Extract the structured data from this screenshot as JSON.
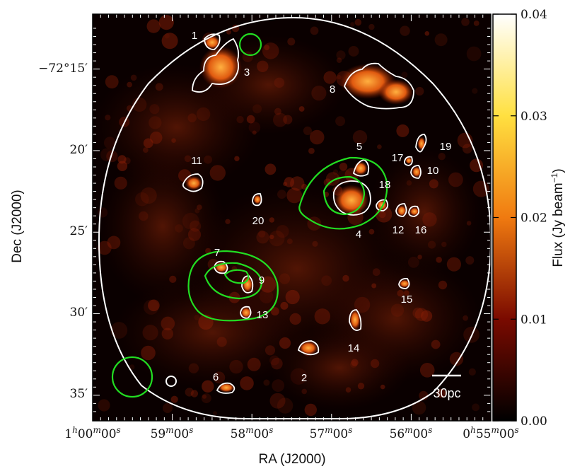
{
  "chart_data": {
    "type": "heatmap",
    "xlabel": "RA (J2000)",
    "ylabel": "Dec (J2000)",
    "x_ticks": [
      {
        "main": "1",
        "sup1": "h",
        "mid1": "00",
        "sup2": "m",
        "mid2": "00",
        "sup3": "s"
      },
      {
        "main": "59",
        "sup1": "m",
        "mid1": "00",
        "sup2": "s",
        "mid2": "",
        "sup3": ""
      },
      {
        "main": "58",
        "sup1": "m",
        "mid1": "00",
        "sup2": "s",
        "mid2": "",
        "sup3": ""
      },
      {
        "main": "57",
        "sup1": "m",
        "mid1": "00",
        "sup2": "s",
        "mid2": "",
        "sup3": ""
      },
      {
        "main": "56",
        "sup1": "m",
        "mid1": "00",
        "sup2": "s",
        "mid2": "",
        "sup3": ""
      },
      {
        "main": "0",
        "sup1": "h",
        "mid1": "55",
        "sup2": "m",
        "mid2": "00",
        "sup3": "s"
      }
    ],
    "y_ticks": [
      "−72°15′",
      "20′",
      "25′",
      "30′",
      "35′"
    ],
    "colorbar": {
      "label": "Flux (Jy beam",
      "label_sup": "−1",
      "label_close": ")",
      "ticks": [
        "0.00",
        "0.01",
        "0.02",
        "0.03",
        "0.04"
      ],
      "min": 0.0,
      "max": 0.04,
      "colormap": "afmhot"
    },
    "regions": [
      {
        "id": "1",
        "label": "1"
      },
      {
        "id": "2",
        "label": "2"
      },
      {
        "id": "3",
        "label": "3"
      },
      {
        "id": "4",
        "label": "4"
      },
      {
        "id": "5",
        "label": "5"
      },
      {
        "id": "6",
        "label": "6"
      },
      {
        "id": "7",
        "label": "7"
      },
      {
        "id": "8",
        "label": "8"
      },
      {
        "id": "9",
        "label": "9"
      },
      {
        "id": "10",
        "label": "10"
      },
      {
        "id": "11",
        "label": "11"
      },
      {
        "id": "12",
        "label": "12"
      },
      {
        "id": "13",
        "label": "13"
      },
      {
        "id": "14",
        "label": "14"
      },
      {
        "id": "15",
        "label": "15"
      },
      {
        "id": "16",
        "label": "16"
      },
      {
        "id": "17",
        "label": "17"
      },
      {
        "id": "18",
        "label": "18"
      },
      {
        "id": "19",
        "label": "19"
      },
      {
        "id": "20",
        "label": "20"
      }
    ],
    "scalebar_label": "30pc",
    "colors": {
      "contour_white": "#ffffff",
      "contour_green": "#22dd22",
      "background": "#0a0000"
    }
  }
}
